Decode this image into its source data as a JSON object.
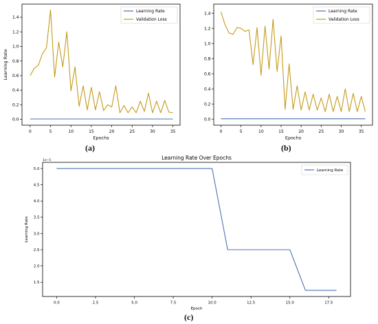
{
  "captions": [
    "(a)",
    "(b)",
    "(c)"
  ],
  "colors": {
    "lr": "#4c72b0",
    "val": "#c49a1a",
    "axis": "#000000"
  },
  "chart_data": [
    {
      "type": "line",
      "title": "",
      "xlabel": "Epochs",
      "ylabel": "Learning Rate",
      "xlim": [
        -2,
        36.75
      ],
      "ylim": [
        -0.08,
        1.58
      ],
      "xticks": [
        0,
        5,
        10,
        15,
        20,
        25,
        30,
        35
      ],
      "yticks": [
        0.0,
        0.2,
        0.4,
        0.6,
        0.8,
        1.0,
        1.2,
        1.4
      ],
      "ytick_labels": [
        "0.0",
        "0.2",
        "0.4",
        "0.6",
        "0.8",
        "1.0",
        "1.2",
        "1.4"
      ],
      "legend": "upper-right",
      "series": [
        {
          "name": "Learning Rate",
          "color": "#4c72b0",
          "x": [
            0,
            35
          ],
          "y": [
            0.005,
            0.005
          ]
        },
        {
          "name": "Validation Loss",
          "color": "#c49a1a",
          "x": [
            0,
            1,
            2,
            3,
            4,
            5,
            6,
            7,
            8,
            9,
            10,
            11,
            12,
            13,
            14,
            15,
            16,
            17,
            18,
            19,
            20,
            21,
            22,
            23,
            24,
            25,
            26,
            27,
            28,
            29,
            30,
            31,
            32,
            33,
            34,
            35
          ],
          "y": [
            0.6,
            0.7,
            0.74,
            0.9,
            0.98,
            1.5,
            0.58,
            1.06,
            0.72,
            1.2,
            0.39,
            0.72,
            0.18,
            0.46,
            0.13,
            0.44,
            0.13,
            0.38,
            0.12,
            0.2,
            0.17,
            0.46,
            0.09,
            0.19,
            0.09,
            0.17,
            0.09,
            0.25,
            0.11,
            0.36,
            0.09,
            0.25,
            0.09,
            0.26,
            0.1,
            0.09
          ]
        }
      ]
    },
    {
      "type": "line",
      "title": "",
      "xlabel": "Epochs",
      "ylabel": "",
      "xlim": [
        -1.8,
        37.8
      ],
      "ylim": [
        -0.08,
        1.52
      ],
      "xticks": [
        0,
        5,
        10,
        15,
        20,
        25,
        30,
        35
      ],
      "yticks": [
        0.0,
        0.2,
        0.4,
        0.6,
        0.8,
        1.0,
        1.2,
        1.4
      ],
      "ytick_labels": [
        "0.0",
        "0.2",
        "0.4",
        "0.6",
        "0.8",
        "1.0",
        "1.2",
        "1.4"
      ],
      "legend": "upper-right",
      "series": [
        {
          "name": "Learning Rate",
          "color": "#4c72b0",
          "x": [
            0,
            36
          ],
          "y": [
            0.005,
            0.005
          ]
        },
        {
          "name": "Validation Loss",
          "color": "#c49a1a",
          "x": [
            0,
            1,
            2,
            3,
            4,
            5,
            6,
            7,
            8,
            9,
            10,
            11,
            12,
            13,
            14,
            15,
            16,
            17,
            18,
            19,
            20,
            21,
            22,
            23,
            24,
            25,
            26,
            27,
            28,
            29,
            30,
            31,
            32,
            33,
            34,
            35,
            36
          ],
          "y": [
            1.42,
            1.25,
            1.14,
            1.12,
            1.21,
            1.2,
            1.16,
            1.18,
            0.72,
            1.21,
            0.58,
            1.23,
            0.66,
            1.32,
            0.63,
            1.1,
            0.13,
            0.73,
            0.13,
            0.44,
            0.12,
            0.36,
            0.12,
            0.33,
            0.12,
            0.28,
            0.1,
            0.33,
            0.1,
            0.3,
            0.1,
            0.4,
            0.1,
            0.34,
            0.1,
            0.3,
            0.1
          ]
        }
      ]
    },
    {
      "type": "line",
      "title": "Learning Rate Over Epochs",
      "xlabel": "Epoch",
      "ylabel": "Learning Rate",
      "offset_label": "1e−5",
      "xlim": [
        -0.9,
        18.9
      ],
      "ylim": [
        1.06,
        5.19
      ],
      "xticks": [
        0.0,
        2.5,
        5.0,
        7.5,
        10.0,
        12.5,
        15.0,
        17.5
      ],
      "xtick_labels": [
        "0.0",
        "2.5",
        "5.0",
        "7.5",
        "10.0",
        "12.5",
        "15.0",
        "17.5"
      ],
      "yticks": [
        1.5,
        2.0,
        2.5,
        3.0,
        3.5,
        4.0,
        4.5,
        5.0
      ],
      "ytick_labels": [
        "1.5",
        "2.0",
        "2.5",
        "3.0",
        "3.5",
        "4.0",
        "4.5",
        "5.0"
      ],
      "legend": "upper-right",
      "series": [
        {
          "name": "Learning Rate",
          "color": "#4c72b0",
          "x": [
            0,
            10,
            11,
            15,
            16,
            18
          ],
          "y": [
            5.0,
            5.0,
            2.5,
            2.5,
            1.25,
            1.25
          ]
        }
      ]
    }
  ]
}
